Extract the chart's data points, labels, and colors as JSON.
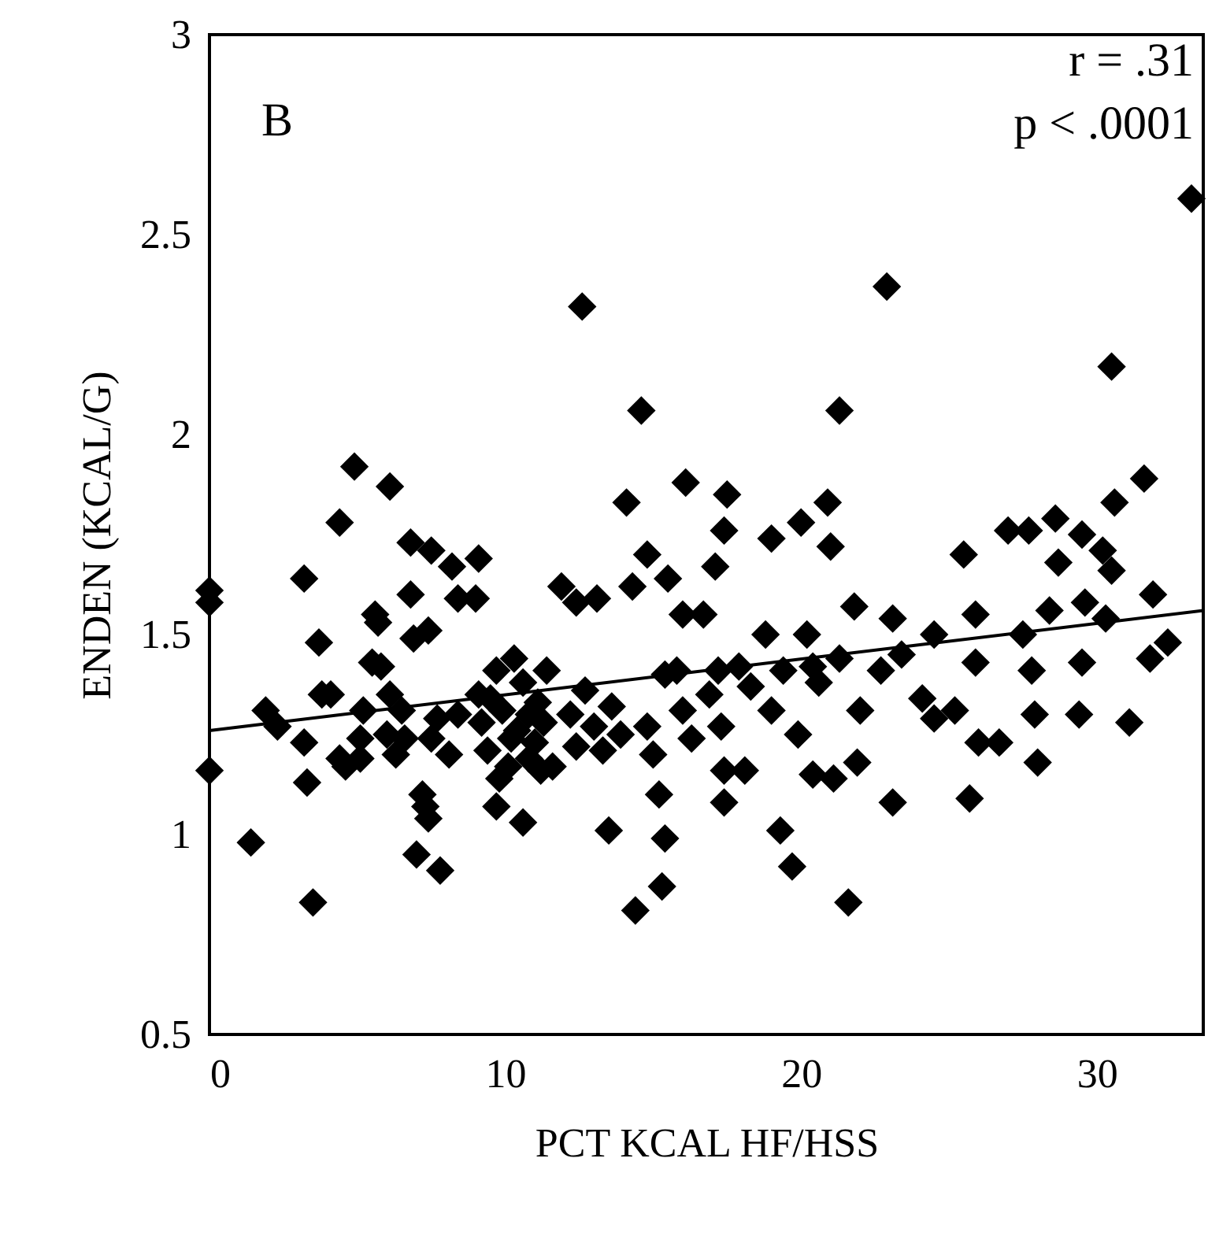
{
  "chart_data": {
    "type": "scatter",
    "xlabel": "PCT KCAL HF/HSS",
    "ylabel": "ENDEN (KCAL/G)",
    "annotations": [
      "B",
      "r = .31",
      "p < .0001"
    ],
    "xlim": [
      0,
      33.6
    ],
    "xticks": [
      0,
      10,
      20,
      30
    ],
    "ylim": [
      0.5,
      3
    ],
    "yticks": [
      0.5,
      1,
      1.5,
      2,
      2.5,
      3
    ],
    "grid": false,
    "marker": "diamond",
    "series": [
      {
        "color": "#000000",
        "x": [
          0,
          0,
          0,
          1.4,
          1.9,
          2.3,
          3.2,
          3.2,
          3.3,
          3.7,
          3.5,
          3.8,
          4.1,
          4.4,
          4.4,
          4.6,
          4.9,
          5.1,
          5.1,
          5.2,
          5.5,
          5.6,
          5.7,
          5.8,
          6.0,
          6.1,
          6.1,
          6.3,
          6.5,
          6.6,
          6.8,
          6.9,
          6.8,
          7.0,
          7.2,
          7.3,
          7.4,
          7.4,
          7.5,
          7.5,
          7.7,
          7.8,
          8.1,
          8.2,
          8.4,
          8.4,
          9.0,
          9.1,
          9.1,
          9.2,
          9.4,
          9.5,
          9.7,
          9.7,
          9.8,
          9.9,
          10.1,
          10.2,
          10.3,
          10.6,
          10.4,
          10.6,
          10.8,
          10.8,
          11.0,
          11.1,
          11.2,
          11.3,
          11.4,
          11.6,
          11.9,
          12.4,
          12.6,
          13.1,
          12.2,
          12.4,
          12.7,
          13.0,
          13.3,
          13.5,
          13.6,
          13.9,
          14.3,
          14.1,
          14.4,
          14.6,
          14.8,
          15.3,
          15.4,
          14.8,
          15.0,
          15.2,
          15.4,
          15.5,
          15.8,
          16.0,
          16.0,
          16.1,
          16.3,
          16.7,
          16.9,
          17.1,
          17.2,
          17.3,
          17.4,
          17.4,
          17.4,
          17.5,
          17.9,
          18.1,
          18.3,
          18.8,
          19.0,
          19.0,
          19.3,
          19.4,
          19.7,
          19.9,
          20.0,
          20.2,
          20.4,
          20.4,
          20.6,
          20.9,
          21.0,
          21.1,
          21.3,
          21.3,
          21.6,
          21.8,
          21.9,
          22.0,
          22.7,
          22.9,
          23.1,
          23.1,
          23.4,
          24.1,
          24.5,
          24.5,
          25.2,
          25.5,
          25.7,
          25.9,
          25.9,
          26.0,
          26.7,
          27.0,
          27.5,
          27.7,
          27.8,
          27.9,
          28.0,
          28.4,
          28.6,
          28.7,
          29.4,
          29.5,
          29.5,
          29.6,
          30.2,
          30.3,
          30.5,
          30.5,
          30.6,
          31.1,
          31.6,
          31.8,
          31.9,
          32.4,
          33.2
        ],
        "values": [
          1.61,
          1.58,
          1.16,
          0.98,
          1.31,
          1.27,
          1.23,
          1.64,
          1.13,
          1.48,
          0.83,
          1.35,
          1.35,
          1.78,
          1.19,
          1.17,
          1.92,
          1.24,
          1.19,
          1.31,
          1.43,
          1.55,
          1.53,
          1.42,
          1.25,
          1.87,
          1.35,
          1.2,
          1.31,
          1.24,
          1.73,
          1.49,
          1.6,
          0.95,
          1.1,
          1.07,
          1.04,
          1.51,
          1.71,
          1.24,
          1.29,
          0.91,
          1.2,
          1.67,
          1.3,
          1.59,
          1.59,
          1.69,
          1.35,
          1.28,
          1.21,
          1.34,
          1.41,
          1.07,
          1.14,
          1.31,
          1.17,
          1.24,
          1.44,
          1.03,
          1.26,
          1.38,
          1.3,
          1.19,
          1.23,
          1.33,
          1.16,
          1.28,
          1.41,
          1.17,
          1.62,
          1.58,
          2.32,
          1.59,
          1.3,
          1.22,
          1.36,
          1.27,
          1.21,
          1.01,
          1.32,
          1.25,
          1.62,
          1.83,
          0.81,
          2.06,
          1.7,
          0.87,
          0.99,
          1.27,
          1.2,
          1.1,
          1.4,
          1.64,
          1.41,
          1.55,
          1.31,
          1.88,
          1.24,
          1.55,
          1.35,
          1.67,
          1.41,
          1.27,
          1.76,
          1.16,
          1.08,
          1.85,
          1.42,
          1.16,
          1.37,
          1.5,
          1.74,
          1.31,
          1.01,
          1.41,
          0.92,
          1.25,
          1.78,
          1.5,
          1.42,
          1.15,
          1.38,
          1.83,
          1.72,
          1.14,
          2.06,
          1.44,
          0.83,
          1.57,
          1.18,
          1.31,
          1.41,
          2.37,
          1.54,
          1.08,
          1.45,
          1.34,
          1.29,
          1.5,
          1.31,
          1.7,
          1.09,
          1.55,
          1.43,
          1.23,
          1.23,
          1.76,
          1.5,
          1.76,
          1.41,
          1.3,
          1.18,
          1.56,
          1.79,
          1.68,
          1.3,
          1.75,
          1.43,
          1.58,
          1.71,
          1.54,
          1.66,
          2.17,
          1.83,
          1.28,
          1.89,
          1.44,
          1.6,
          1.48,
          2.59
        ]
      },
      {
        "type": "line",
        "marker": "none",
        "line_style": "solid",
        "color": "#000000",
        "x": [
          0,
          33.6
        ],
        "values": [
          1.26,
          1.56
        ]
      }
    ]
  }
}
